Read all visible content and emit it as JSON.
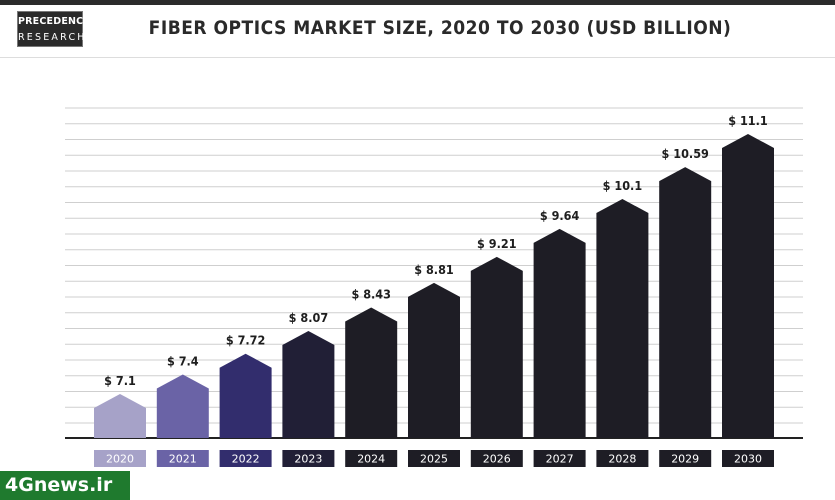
{
  "brand": {
    "line1": "PRECEDENCE",
    "line2": "RESEARCH"
  },
  "chart_data": {
    "type": "bar",
    "title": "FIBER OPTICS MARKET SIZE, 2020 TO 2030 (USD BILLION)",
    "categories": [
      "2020",
      "2021",
      "2022",
      "2023",
      "2024",
      "2025",
      "2026",
      "2027",
      "2028",
      "2029",
      "2030"
    ],
    "values": [
      7.1,
      7.4,
      7.72,
      8.07,
      8.43,
      8.81,
      9.21,
      9.64,
      10.1,
      10.59,
      11.1
    ],
    "value_labels": [
      "$ 7.1",
      "$ 7.4",
      "$ 7.72",
      "$ 8.07",
      "$ 8.43",
      "$ 8.81",
      "$ 9.21",
      "$ 9.64",
      "$ 10.1",
      "$ 10.59",
      "$ 11.1"
    ],
    "colors": [
      "#a6a2c8",
      "#6a63a6",
      "#322d6d",
      "#211f36",
      "#1e1d25",
      "#1e1d25",
      "#1e1d25",
      "#1e1d25",
      "#1e1d25",
      "#1e1d25",
      "#1e1d25"
    ],
    "xlabel": "",
    "ylabel": "",
    "grid": true,
    "legend": "none"
  },
  "watermark": "4Gnews.ir"
}
